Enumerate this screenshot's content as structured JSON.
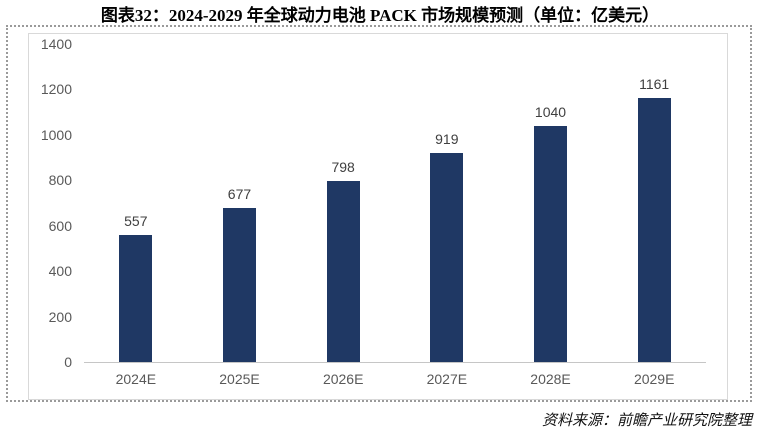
{
  "title": "图表32：2024-2029 年全球动力电池 PACK 市场规模预测（单位：亿美元）",
  "source": "资料来源：前瞻产业研究院整理",
  "chart_data": {
    "type": "bar",
    "title": "图表32：2024-2029 年全球动力电池 PACK 市场规模预测（单位：亿美元）",
    "unit": "亿美元",
    "categories": [
      "2024E",
      "2025E",
      "2026E",
      "2027E",
      "2028E",
      "2029E"
    ],
    "values": [
      557,
      677,
      798,
      919,
      1040,
      1161
    ],
    "data_labels_shown": true,
    "xlabel": "",
    "ylabel": "",
    "ylim": [
      0,
      1400
    ],
    "yticks": [
      0,
      200,
      400,
      600,
      800,
      1000,
      1200,
      1400
    ],
    "grid": false,
    "legend": "none",
    "bar_color": "#1f3864",
    "data_label_color": "#404040",
    "axis_text_color": "#595959",
    "axis_line_color": "#c6c6c6",
    "frame_border_color": "#d9d9d9"
  }
}
